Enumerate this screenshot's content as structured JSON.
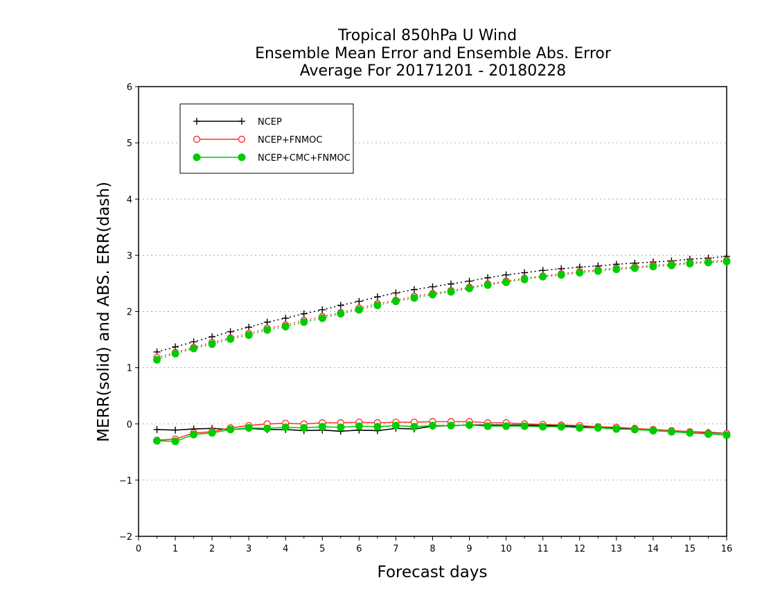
{
  "chart_data": {
    "type": "line",
    "title_lines": [
      "Tropical 850hPa U Wind",
      "Ensemble Mean Error and Ensemble Abs. Error",
      "Average For 20171201 - 20180228"
    ],
    "xlabel": "Forecast days",
    "ylabel": "MERR(solid) and ABS. ERR(dash)",
    "xlim": [
      0,
      16
    ],
    "ylim": [
      -2,
      6
    ],
    "xticks": [
      0,
      1,
      2,
      3,
      4,
      5,
      6,
      7,
      8,
      9,
      10,
      11,
      12,
      13,
      14,
      15,
      16
    ],
    "yticks": [
      -2,
      -1,
      0,
      1,
      2,
      3,
      4,
      5,
      6
    ],
    "xtick_labels": [
      "0",
      "1",
      "2",
      "3",
      "4",
      "5",
      "6",
      "7",
      "8",
      "9",
      "10",
      "11",
      "12",
      "13",
      "14",
      "15",
      "16"
    ],
    "ytick_labels": [
      "−2",
      "−1",
      "0",
      "1",
      "2",
      "3",
      "4",
      "5",
      "6"
    ],
    "grid": "horizontal dotted",
    "legend_position": "top-left",
    "x": [
      0.5,
      1,
      1.5,
      2,
      2.5,
      3,
      3.5,
      4,
      4.5,
      5,
      5.5,
      6,
      6.5,
      7,
      7.5,
      8,
      8.5,
      9,
      9.5,
      10,
      10.5,
      11,
      11.5,
      12,
      12.5,
      13,
      13.5,
      14,
      14.5,
      15,
      15.5,
      16
    ],
    "series": [
      {
        "name": "NCEP",
        "color": "#000000",
        "marker": "plus",
        "merr": [
          -0.1,
          -0.11,
          -0.09,
          -0.08,
          -0.1,
          -0.08,
          -0.1,
          -0.1,
          -0.12,
          -0.11,
          -0.13,
          -0.11,
          -0.12,
          -0.08,
          -0.09,
          -0.04,
          -0.03,
          -0.02,
          -0.02,
          -0.02,
          -0.02,
          -0.03,
          -0.03,
          -0.05,
          -0.06,
          -0.07,
          -0.09,
          -0.1,
          -0.12,
          -0.14,
          -0.15,
          -0.17
        ],
        "abs_err": [
          1.28,
          1.37,
          1.46,
          1.55,
          1.64,
          1.72,
          1.81,
          1.88,
          1.96,
          2.03,
          2.11,
          2.18,
          2.26,
          2.33,
          2.39,
          2.44,
          2.49,
          2.54,
          2.6,
          2.65,
          2.69,
          2.73,
          2.76,
          2.79,
          2.81,
          2.84,
          2.86,
          2.88,
          2.9,
          2.93,
          2.95,
          2.98
        ]
      },
      {
        "name": "NCEP+FNMOC",
        "color": "#ff3333",
        "marker": "open-circle",
        "merr": [
          -0.29,
          -0.27,
          -0.16,
          -0.14,
          -0.07,
          -0.03,
          0.0,
          0.01,
          0.0,
          0.02,
          0.02,
          0.03,
          0.02,
          0.03,
          0.03,
          0.04,
          0.04,
          0.04,
          0.02,
          0.02,
          0.0,
          -0.01,
          -0.02,
          -0.03,
          -0.05,
          -0.06,
          -0.08,
          -0.1,
          -0.12,
          -0.14,
          -0.16,
          -0.17
        ],
        "abs_err": [
          1.18,
          1.27,
          1.36,
          1.45,
          1.53,
          1.61,
          1.7,
          1.76,
          1.84,
          1.91,
          1.98,
          2.06,
          2.14,
          2.2,
          2.27,
          2.32,
          2.37,
          2.43,
          2.49,
          2.54,
          2.59,
          2.63,
          2.67,
          2.71,
          2.74,
          2.77,
          2.79,
          2.82,
          2.84,
          2.87,
          2.89,
          2.91
        ]
      },
      {
        "name": "NCEP+CMC+FNMOC",
        "color": "#00cc00",
        "marker": "filled-circle",
        "merr": [
          -0.3,
          -0.31,
          -0.19,
          -0.16,
          -0.1,
          -0.07,
          -0.08,
          -0.06,
          -0.07,
          -0.05,
          -0.06,
          -0.04,
          -0.05,
          -0.03,
          -0.05,
          -0.03,
          -0.03,
          -0.02,
          -0.04,
          -0.04,
          -0.04,
          -0.05,
          -0.05,
          -0.07,
          -0.07,
          -0.09,
          -0.1,
          -0.12,
          -0.14,
          -0.16,
          -0.18,
          -0.2
        ],
        "abs_err": [
          1.14,
          1.25,
          1.34,
          1.42,
          1.51,
          1.58,
          1.67,
          1.73,
          1.81,
          1.88,
          1.96,
          2.03,
          2.11,
          2.18,
          2.24,
          2.3,
          2.35,
          2.41,
          2.47,
          2.52,
          2.57,
          2.62,
          2.65,
          2.69,
          2.72,
          2.75,
          2.77,
          2.8,
          2.82,
          2.85,
          2.87,
          2.89
        ]
      }
    ]
  }
}
